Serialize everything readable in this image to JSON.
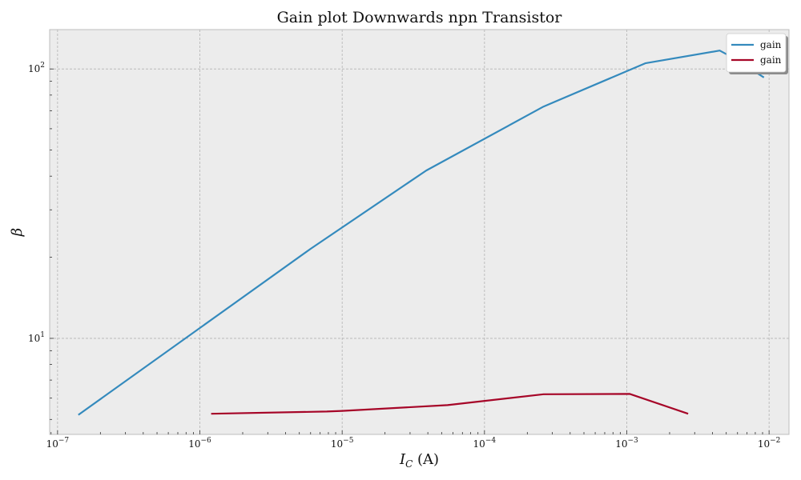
{
  "chart_data": {
    "type": "line",
    "title": "Gain plot Downwards npn Transistor",
    "xlabel": "I_C (A)",
    "ylabel": "β",
    "xscale": "log",
    "yscale": "log",
    "xlim": [
      8.8e-08,
      0.0138
    ],
    "ylim": [
      4.4,
      140
    ],
    "grid": true,
    "legend_position": "top-right",
    "x_ticks": [
      {
        "value": 1e-07,
        "label": "10^-7"
      },
      {
        "value": 1e-06,
        "label": "10^-6"
      },
      {
        "value": 1e-05,
        "label": "10^-5"
      },
      {
        "value": 0.0001,
        "label": "10^-4"
      },
      {
        "value": 0.001,
        "label": "10^-3"
      },
      {
        "value": 0.01,
        "label": "10^-2"
      }
    ],
    "y_ticks": [
      {
        "value": 10,
        "label": "10^1"
      },
      {
        "value": 100,
        "label": "10^2"
      }
    ],
    "series": [
      {
        "name": "gain",
        "color": "#348abd",
        "points": [
          [
            1.4e-07,
            5.2
          ],
          [
            6e-06,
            21.5
          ],
          [
            3.9e-05,
            42.0
          ],
          [
            0.00026,
            72.5
          ],
          [
            0.00135,
            105.0
          ],
          [
            0.0045,
            117.0
          ],
          [
            0.0056,
            110.0
          ],
          [
            0.0092,
            93.0
          ]
        ]
      },
      {
        "name": "gain",
        "color": "#a60628",
        "points": [
          [
            1.2e-06,
            5.25
          ],
          [
            7.8e-06,
            5.35
          ],
          [
            1e-05,
            5.38
          ],
          [
            5.5e-05,
            5.65
          ],
          [
            0.00026,
            6.2
          ],
          [
            0.00105,
            6.22
          ],
          [
            0.0027,
            5.25
          ]
        ]
      }
    ]
  }
}
